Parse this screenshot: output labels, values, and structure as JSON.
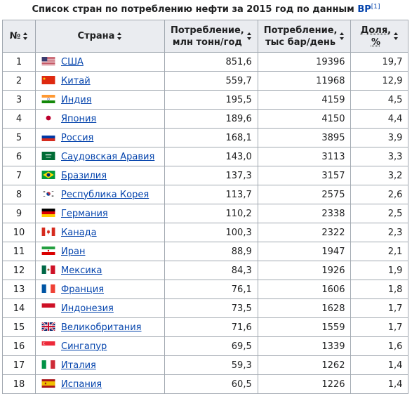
{
  "caption": {
    "text": "Список стран по потреблению нефти за 2015 год по данным ",
    "link": "BP",
    "ref": "[1]"
  },
  "headers": {
    "num": "№",
    "country": "Страна",
    "mt_line1": "Потребление,",
    "mt_line2": "млн тонн/год",
    "bpd_line1": "Потребление,",
    "bpd_line2": "тыс бар/день",
    "share_line1": "Доля,",
    "share_line2": "%"
  },
  "rows": [
    {
      "num": "1",
      "country": "США",
      "mt": "851,6",
      "bpd": "19396",
      "share": "19,7",
      "flag": "usa-flag"
    },
    {
      "num": "2",
      "country": "Китай",
      "mt": "559,7",
      "bpd": "11968",
      "share": "12,9",
      "flag": "china-flag"
    },
    {
      "num": "3",
      "country": "Индия",
      "mt": "195,5",
      "bpd": "4159",
      "share": "4,5",
      "flag": "india-flag"
    },
    {
      "num": "4",
      "country": "Япония",
      "mt": "189,6",
      "bpd": "4150",
      "share": "4,4",
      "flag": "japan-flag"
    },
    {
      "num": "5",
      "country": "Россия",
      "mt": "168,1",
      "bpd": "3895",
      "share": "3,9",
      "flag": "russia-flag"
    },
    {
      "num": "6",
      "country": "Саудовская Аравия",
      "mt": "143,0",
      "bpd": "3113",
      "share": "3,3",
      "flag": "saudi-arabia-flag"
    },
    {
      "num": "7",
      "country": "Бразилия",
      "mt": "137,3",
      "bpd": "3157",
      "share": "3,2",
      "flag": "brazil-flag"
    },
    {
      "num": "8",
      "country": "Республика Корея",
      "mt": "113,7",
      "bpd": "2575",
      "share": "2,6",
      "flag": "south-korea-flag"
    },
    {
      "num": "9",
      "country": "Германия",
      "mt": "110,2",
      "bpd": "2338",
      "share": "2,5",
      "flag": "germany-flag"
    },
    {
      "num": "10",
      "country": "Канада",
      "mt": "100,3",
      "bpd": "2322",
      "share": "2,3",
      "flag": "canada-flag"
    },
    {
      "num": "11",
      "country": "Иран",
      "mt": "88,9",
      "bpd": "1947",
      "share": "2,1",
      "flag": "iran-flag"
    },
    {
      "num": "12",
      "country": "Мексика",
      "mt": "84,3",
      "bpd": "1926",
      "share": "1,9",
      "flag": "mexico-flag"
    },
    {
      "num": "13",
      "country": "Франция",
      "mt": "76,1",
      "bpd": "1606",
      "share": "1,8",
      "flag": "france-flag"
    },
    {
      "num": "14",
      "country": "Индонезия",
      "mt": "73,5",
      "bpd": "1628",
      "share": "1,7",
      "flag": "indonesia-flag"
    },
    {
      "num": "15",
      "country": "Великобритания",
      "mt": "71,6",
      "bpd": "1559",
      "share": "1,7",
      "flag": "uk-flag"
    },
    {
      "num": "16",
      "country": "Сингапур",
      "mt": "69,5",
      "bpd": "1339",
      "share": "1,6",
      "flag": "singapore-flag"
    },
    {
      "num": "17",
      "country": "Италия",
      "mt": "59,3",
      "bpd": "1262",
      "share": "1,4",
      "flag": "italy-flag"
    },
    {
      "num": "18",
      "country": "Испания",
      "mt": "60,5",
      "bpd": "1226",
      "share": "1,4",
      "flag": "spain-flag"
    }
  ]
}
